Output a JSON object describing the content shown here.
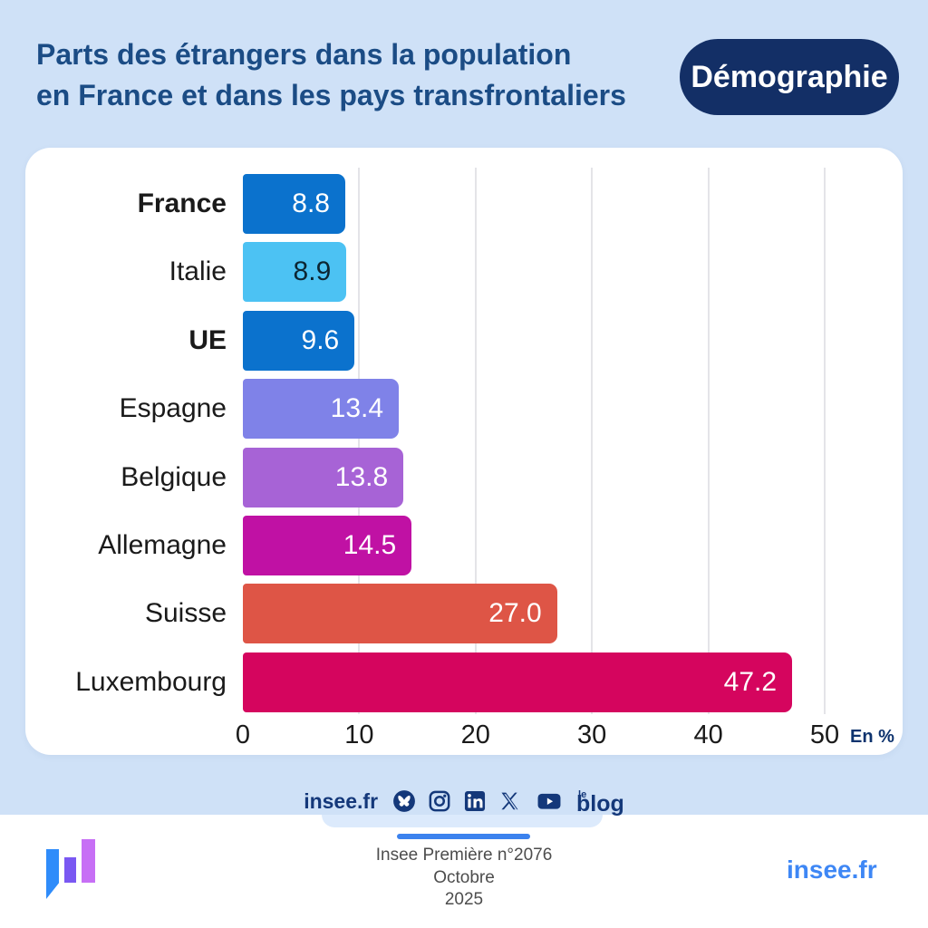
{
  "header": {
    "title_line1": "Parts des étrangers dans la population",
    "title_line2": "en France et dans les pays transfrontaliers",
    "badge": "Démographie"
  },
  "chart_data": {
    "type": "bar",
    "orientation": "horizontal",
    "title": "Parts des étrangers dans la population en France et dans les pays transfrontaliers",
    "unit_label": "En %",
    "xlim": [
      0,
      50
    ],
    "xticks": [
      0,
      10,
      20,
      30,
      40,
      50
    ],
    "grid": true,
    "categories": [
      "France",
      "Italie",
      "UE",
      "Espagne",
      "Belgique",
      "Allemagne",
      "Suisse",
      "Luxembourg"
    ],
    "values": [
      8.8,
      8.9,
      9.6,
      13.4,
      13.8,
      14.5,
      27.0,
      47.2
    ],
    "value_labels": [
      "8.8",
      "8.9",
      "9.6",
      "13.4",
      "13.8",
      "14.5",
      "27.0",
      "47.2"
    ],
    "bold_categories": [
      "France",
      "UE"
    ],
    "bar_colors": [
      "#0b72cd",
      "#4cc2f3",
      "#0b72cd",
      "#7f82e8",
      "#a763d6",
      "#c011a4",
      "#de5546",
      "#d5055e"
    ],
    "value_text_colors": [
      "#ffffff",
      "#0c2633",
      "#ffffff",
      "#ffffff",
      "#ffffff",
      "#ffffff",
      "#ffffff",
      "#ffffff"
    ]
  },
  "footer_social": {
    "site_label": "insee.fr",
    "blog_le": "le",
    "blog_text": "blog"
  },
  "bottom_bar": {
    "publication": "Insee Première n°2076",
    "month": "Octobre",
    "year": "2025",
    "site": "insee.fr"
  },
  "colors": {
    "background": "#cfe1f7",
    "card": "#ffffff",
    "title": "#1b4c85",
    "badge_bg": "#132f66",
    "social_navy": "#14387a",
    "bottom_text": "#4d4d4d",
    "bottom_site_blue": "#3e87f5",
    "accent_line": "#3b82ee",
    "gridline": "#e4e4e8"
  }
}
